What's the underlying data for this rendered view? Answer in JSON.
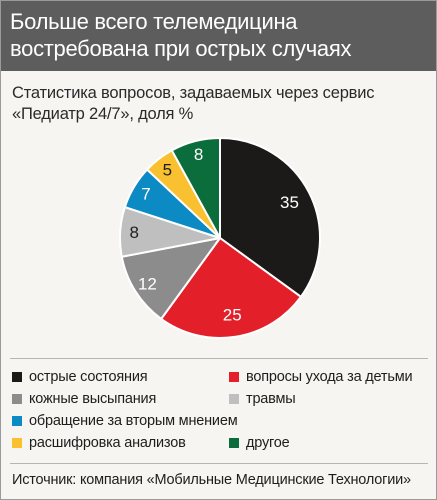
{
  "header": {
    "title": "Больше всего телемедицина востребована при острых случаях"
  },
  "subtitle": "Статистика вопросов, задаваемых через сервис «Педиатр 24/7», доля %",
  "chart_data": {
    "type": "pie",
    "title": "Больше всего телемедицина востребована при острых случаях",
    "subtitle": "Статистика вопросов, задаваемых через сервис «Педиатр 24/7», доля %",
    "categories": [
      "острые состояния",
      "вопросы ухода за детьми",
      "кожные высыпания",
      "травмы",
      "обращение за вторым мнением",
      "расшифровка анализов",
      "другое"
    ],
    "values": [
      35,
      25,
      12,
      8,
      7,
      5,
      8
    ],
    "colors": [
      "#1c1919",
      "#e3202a",
      "#8c8c8c",
      "#bfbfbf",
      "#0c8ac4",
      "#f9c02f",
      "#0b6c3c"
    ],
    "label_colors": [
      "#ffffff",
      "#ffffff",
      "#ffffff",
      "#1e1e1e",
      "#ffffff",
      "#1e1e1e",
      "#ffffff"
    ],
    "legend_placement": "bottom"
  },
  "legend": {
    "items": [
      {
        "label": "острые состояния",
        "color": "#1c1919"
      },
      {
        "label": "вопросы ухода за детьми",
        "color": "#e3202a"
      },
      {
        "label": "кожные высыпания",
        "color": "#8c8c8c"
      },
      {
        "label": "травмы",
        "color": "#bfbfbf"
      },
      {
        "label": "обращение за вторым мнением",
        "color": "#0c8ac4"
      },
      {
        "label": "расшифровка анализов",
        "color": "#f9c02f"
      },
      {
        "label": "другое",
        "color": "#0b6c3c"
      }
    ]
  },
  "source": "Источник: компания «Мобильные Медицинские Технологии»"
}
